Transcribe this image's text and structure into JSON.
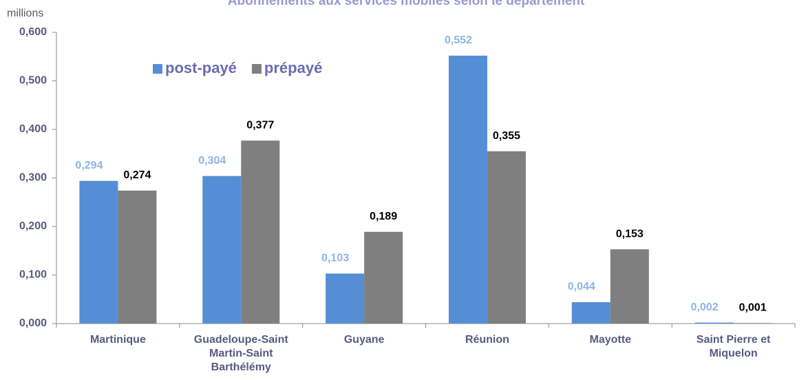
{
  "chart_data": {
    "type": "bar",
    "title": "Abonnements aux services mobiles selon le département",
    "y_label": "millions",
    "categories": [
      "Martinique",
      "Guadeloupe-Saint Martin-Saint Barthélémy",
      "Guyane",
      "Réunion",
      "Mayotte",
      "Saint Pierre et Miquelon"
    ],
    "series": [
      {
        "name": "post-payé",
        "color": "#558ed5",
        "label_color": "#8eb4e3",
        "values": [
          0.294,
          0.304,
          0.103,
          0.552,
          0.044,
          0.002
        ],
        "value_labels": [
          "0,294",
          "0,304",
          "0,103",
          "0,552",
          "0,044",
          "0,002"
        ]
      },
      {
        "name": "prépayé",
        "color": "#7f7f7f",
        "label_color": "#000000",
        "values": [
          0.274,
          0.377,
          0.189,
          0.355,
          0.153,
          0.001
        ],
        "value_labels": [
          "0,274",
          "0,377",
          "0,189",
          "0,355",
          "0,153",
          "0,001"
        ]
      }
    ],
    "ylim": [
      0,
      0.6
    ],
    "yticks": [
      {
        "value": 0,
        "label": "0,000"
      },
      {
        "value": 0.1,
        "label": "0,100"
      },
      {
        "value": 0.2,
        "label": "0,200"
      },
      {
        "value": 0.3,
        "label": "0,300"
      },
      {
        "value": 0.4,
        "label": "0,400"
      },
      {
        "value": 0.5,
        "label": "0,500"
      },
      {
        "value": 0.6,
        "label": "0,600"
      }
    ],
    "legend": "upper-left",
    "grid": false
  }
}
